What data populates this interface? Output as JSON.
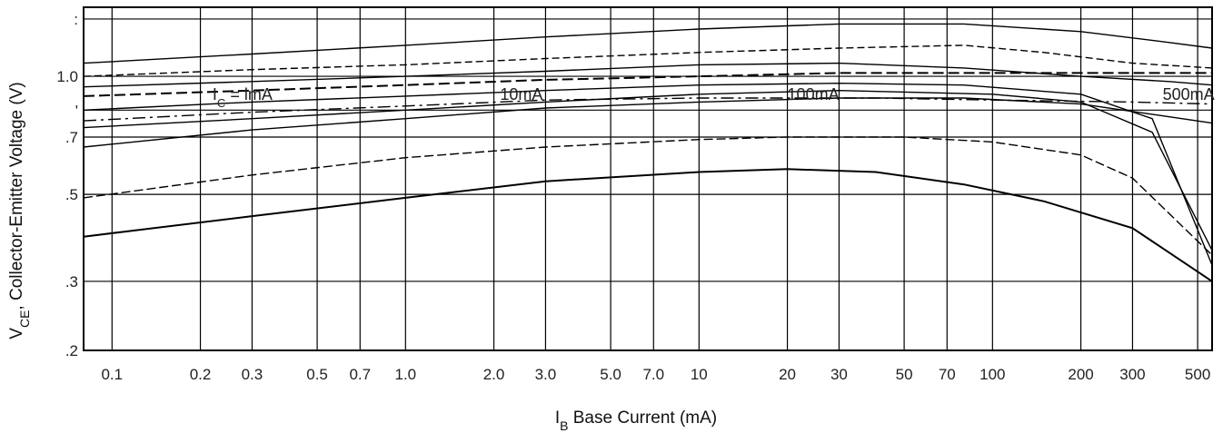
{
  "chart_data": {
    "type": "line",
    "title": "",
    "xlabel": {
      "main": "I",
      "sub": "B",
      "rest": " Base Current (mA)"
    },
    "ylabel": {
      "main": "V",
      "sub": "CE",
      "rest": ", Collector-Emitter Voltage (V)"
    },
    "xscale": "log",
    "yscale": "log",
    "xlim": [
      0.08,
      560
    ],
    "ylim": [
      0.2,
      1.5
    ],
    "grid": true,
    "x_ticks": [
      {
        "v": 0.1,
        "label": "0.1"
      },
      {
        "v": 0.2,
        "label": "0.2"
      },
      {
        "v": 0.3,
        "label": "0.3"
      },
      {
        "v": 0.5,
        "label": "0.5"
      },
      {
        "v": 0.7,
        "label": "0.7"
      },
      {
        "v": 1.0,
        "label": "1.0"
      },
      {
        "v": 2.0,
        "label": "2.0"
      },
      {
        "v": 3.0,
        "label": "3.0"
      },
      {
        "v": 5.0,
        "label": "5.0"
      },
      {
        "v": 7.0,
        "label": "7.0"
      },
      {
        "v": 10,
        "label": "10"
      },
      {
        "v": 20,
        "label": "20"
      },
      {
        "v": 30,
        "label": "30"
      },
      {
        "v": 50,
        "label": "50"
      },
      {
        "v": 70,
        "label": "70"
      },
      {
        "v": 100,
        "label": "100"
      },
      {
        "v": 200,
        "label": "200"
      },
      {
        "v": 300,
        "label": "300"
      },
      {
        "v": 500,
        "label": "500"
      }
    ],
    "y_ticks": [
      {
        "v": 1.4,
        "label": ":"
      },
      {
        "v": 1.0,
        "label": "1.0"
      },
      {
        "v": 0.82,
        "label": "'"
      },
      {
        "v": 0.7,
        "label": ".7"
      },
      {
        "v": 0.5,
        "label": ".5"
      },
      {
        "v": 0.3,
        "label": ".3"
      },
      {
        "v": 0.2,
        "label": ".2"
      }
    ],
    "annotations": [
      {
        "text": "I",
        "sub": "C",
        "rest": " = lmA",
        "x": 0.22,
        "y": 0.9
      },
      {
        "text": "10mA",
        "x": 2.1,
        "y": 0.9
      },
      {
        "text": "100mA",
        "x": 20,
        "y": 0.9
      },
      {
        "text": "500mA",
        "x": 380,
        "y": 0.9
      }
    ],
    "series": [
      {
        "values": [
          [
            0.08,
            0.39
          ],
          [
            0.3,
            0.44
          ],
          [
            1,
            0.49
          ],
          [
            3,
            0.54
          ],
          [
            10,
            0.57
          ],
          [
            20,
            0.58
          ],
          [
            40,
            0.57
          ],
          [
            80,
            0.53
          ],
          [
            150,
            0.48
          ],
          [
            300,
            0.41
          ],
          [
            560,
            0.3
          ]
        ]
      },
      {
        "values": [
          [
            0.08,
            0.49
          ],
          [
            0.3,
            0.56
          ],
          [
            1,
            0.62
          ],
          [
            3,
            0.66
          ],
          [
            10,
            0.69
          ],
          [
            20,
            0.7
          ],
          [
            50,
            0.7
          ],
          [
            100,
            0.68
          ],
          [
            200,
            0.63
          ],
          [
            300,
            0.55
          ],
          [
            560,
            0.35
          ]
        ]
      },
      {
        "values": [
          [
            0.08,
            0.66
          ],
          [
            0.3,
            0.73
          ],
          [
            1,
            0.78
          ],
          [
            3,
            0.83
          ],
          [
            10,
            0.86
          ],
          [
            30,
            0.88
          ],
          [
            80,
            0.88
          ],
          [
            200,
            0.85
          ],
          [
            350,
            0.8
          ],
          [
            560,
            0.76
          ]
        ]
      },
      {
        "values": [
          [
            0.08,
            0.74
          ],
          [
            0.3,
            0.78
          ],
          [
            1,
            0.82
          ],
          [
            3,
            0.86
          ],
          [
            10,
            0.9
          ],
          [
            30,
            0.92
          ],
          [
            100,
            0.9
          ],
          [
            200,
            0.86
          ],
          [
            350,
            0.72
          ],
          [
            560,
            0.36
          ]
        ]
      },
      {
        "values": [
          [
            0.08,
            0.77
          ],
          [
            0.3,
            0.81
          ],
          [
            1,
            0.84
          ],
          [
            3,
            0.87
          ],
          [
            10,
            0.88
          ],
          [
            40,
            0.88
          ],
          [
            100,
            0.87
          ],
          [
            300,
            0.86
          ],
          [
            560,
            0.85
          ]
        ]
      },
      {
        "values": [
          [
            0.08,
            0.82
          ],
          [
            0.3,
            0.86
          ],
          [
            1,
            0.89
          ],
          [
            3,
            0.92
          ],
          [
            10,
            0.95
          ],
          [
            30,
            0.96
          ],
          [
            80,
            0.95
          ],
          [
            200,
            0.9
          ],
          [
            350,
            0.78
          ],
          [
            560,
            0.33
          ]
        ]
      },
      {
        "values": [
          [
            0.08,
            0.89
          ],
          [
            0.3,
            0.92
          ],
          [
            1,
            0.95
          ],
          [
            3,
            0.98
          ],
          [
            10,
            1.0
          ],
          [
            30,
            1.02
          ],
          [
            100,
            1.02
          ],
          [
            300,
            1.02
          ],
          [
            560,
            1.02
          ]
        ]
      },
      {
        "values": [
          [
            0.08,
            0.94
          ],
          [
            0.3,
            0.97
          ],
          [
            1,
            1.0
          ],
          [
            3,
            1.03
          ],
          [
            10,
            1.07
          ],
          [
            30,
            1.08
          ],
          [
            80,
            1.05
          ],
          [
            200,
            1.0
          ],
          [
            400,
            0.97
          ],
          [
            560,
            0.95
          ]
        ]
      },
      {
        "values": [
          [
            0.08,
            1.0
          ],
          [
            0.3,
            1.04
          ],
          [
            1,
            1.07
          ],
          [
            3,
            1.11
          ],
          [
            10,
            1.15
          ],
          [
            30,
            1.18
          ],
          [
            80,
            1.2
          ],
          [
            150,
            1.15
          ],
          [
            300,
            1.08
          ],
          [
            560,
            1.05
          ]
        ]
      },
      {
        "values": [
          [
            0.08,
            1.08
          ],
          [
            0.3,
            1.14
          ],
          [
            1,
            1.2
          ],
          [
            3,
            1.26
          ],
          [
            10,
            1.32
          ],
          [
            30,
            1.36
          ],
          [
            80,
            1.36
          ],
          [
            200,
            1.3
          ],
          [
            400,
            1.22
          ],
          [
            560,
            1.18
          ]
        ]
      }
    ]
  }
}
